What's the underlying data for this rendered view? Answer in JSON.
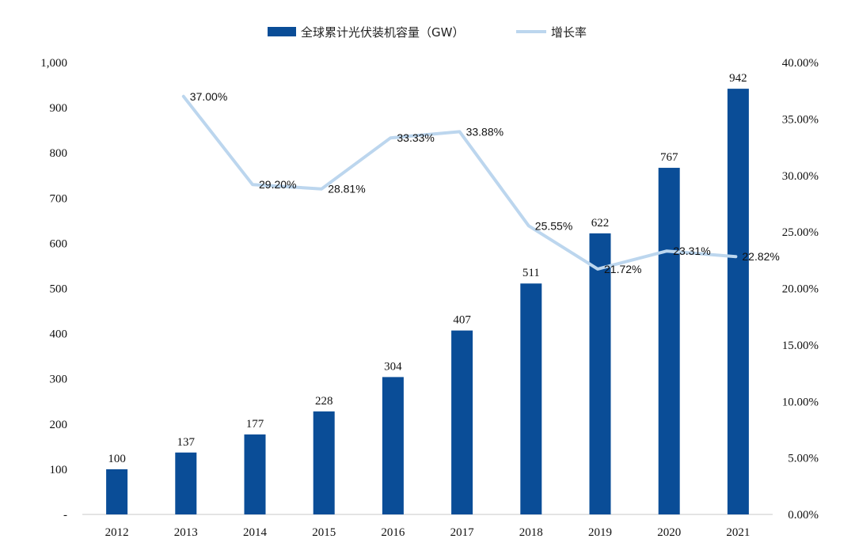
{
  "chart_data": {
    "type": "bar",
    "categories": [
      "2012",
      "2013",
      "2014",
      "2015",
      "2016",
      "2017",
      "2018",
      "2019",
      "2020",
      "2021"
    ],
    "series": [
      {
        "name": "全球累计光伏装机容量（GW）",
        "type": "bar",
        "axis": "left",
        "color": "#0a4d97",
        "values": [
          100,
          137,
          177,
          228,
          304,
          407,
          511,
          622,
          767,
          942
        ],
        "value_labels": [
          "100",
          "137",
          "177",
          "228",
          "304",
          "407",
          "511",
          "622",
          "767",
          "942"
        ]
      },
      {
        "name": "增长率",
        "type": "line",
        "axis": "right",
        "color": "#bcd6ee",
        "values": [
          null,
          37.0,
          29.2,
          28.81,
          33.33,
          33.88,
          25.55,
          21.72,
          23.31,
          22.82
        ],
        "value_labels": [
          "",
          "37.00%",
          "29.20%",
          "28.81%",
          "33.33%",
          "33.88%",
          "25.55%",
          "21.72%",
          "23.31%",
          "22.82%"
        ]
      }
    ],
    "ylim_left": [
      0,
      1000
    ],
    "ylim_right": [
      0,
      40
    ],
    "yticks_left": [
      "-",
      "100",
      "200",
      "300",
      "400",
      "500",
      "600",
      "700",
      "800",
      "900",
      "1,000"
    ],
    "yticks_right": [
      "0.00%",
      "5.00%",
      "10.00%",
      "15.00%",
      "20.00%",
      "25.00%",
      "30.00%",
      "35.00%",
      "40.00%"
    ],
    "legend": {
      "position": "top-center"
    },
    "grid": false
  }
}
